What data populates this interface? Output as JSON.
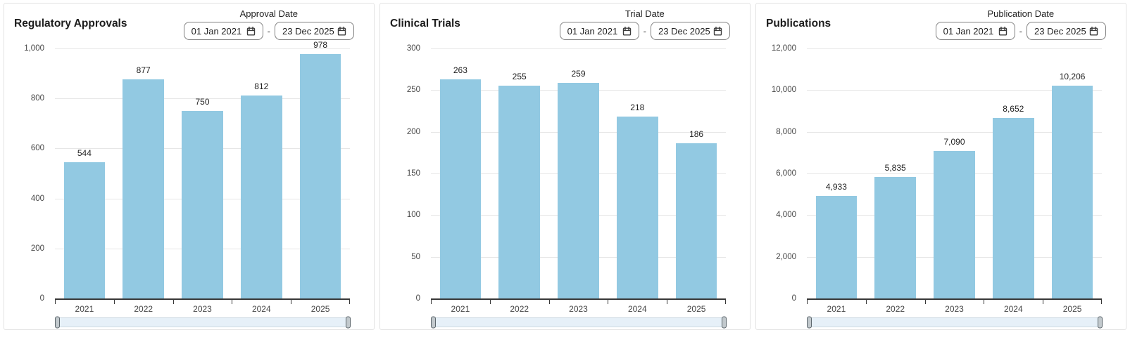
{
  "colors": {
    "bar": "#92c9e2",
    "panel_border": "#e2e2e2",
    "gridline": "#e6e6e6",
    "axis_line": "#383838",
    "slider_track": "#e6f0f8",
    "slider_handle": "#c2c9cd"
  },
  "panels": [
    {
      "title": "Regulatory Approvals",
      "filter": {
        "label": "Approval Date",
        "from": "01 Jan 2021",
        "separator": "-",
        "to": "23 Dec 2025"
      }
    },
    {
      "title": "Clinical Trials",
      "filter": {
        "label": "Trial Date",
        "from": "01 Jan 2021",
        "separator": "-",
        "to": "23 Dec 2025"
      }
    },
    {
      "title": "Publications",
      "filter": {
        "label": "Publication Date",
        "from": "01 Jan 2021",
        "separator": "-",
        "to": "23 Dec 2025"
      }
    }
  ],
  "chart_data": [
    {
      "type": "bar",
      "title": "Regulatory Approvals",
      "categories": [
        "2021",
        "2022",
        "2023",
        "2024",
        "2025"
      ],
      "values": [
        544,
        877,
        750,
        812,
        978
      ],
      "value_labels": [
        "544",
        "877",
        "750",
        "812",
        "978"
      ],
      "xlabel": "",
      "ylabel": "",
      "ylim": [
        0,
        1000
      ],
      "ytick_values": [
        0,
        200,
        400,
        600,
        800,
        1000
      ],
      "ytick_labels": [
        "0",
        "200",
        "400",
        "600",
        "800",
        "1,000"
      ],
      "grid": true,
      "legend": "none",
      "bar_color": "#92c9e2"
    },
    {
      "type": "bar",
      "title": "Clinical Trials",
      "categories": [
        "2021",
        "2022",
        "2023",
        "2024",
        "2025"
      ],
      "values": [
        263,
        255,
        259,
        218,
        186
      ],
      "value_labels": [
        "263",
        "255",
        "259",
        "218",
        "186"
      ],
      "xlabel": "",
      "ylabel": "",
      "ylim": [
        0,
        300
      ],
      "ytick_values": [
        0,
        50,
        100,
        150,
        200,
        250,
        300
      ],
      "ytick_labels": [
        "0",
        "50",
        "100",
        "150",
        "200",
        "250",
        "300"
      ],
      "grid": true,
      "legend": "none",
      "bar_color": "#92c9e2"
    },
    {
      "type": "bar",
      "title": "Publications",
      "categories": [
        "2021",
        "2022",
        "2023",
        "2024",
        "2025"
      ],
      "values": [
        4933,
        5835,
        7090,
        8652,
        10206
      ],
      "value_labels": [
        "4,933",
        "5,835",
        "7,090",
        "8,652",
        "10,206"
      ],
      "xlabel": "",
      "ylabel": "",
      "ylim": [
        0,
        12000
      ],
      "ytick_values": [
        0,
        2000,
        4000,
        6000,
        8000,
        10000,
        12000
      ],
      "ytick_labels": [
        "0",
        "2,000",
        "4,000",
        "6,000",
        "8,000",
        "10,000",
        "12,000"
      ],
      "grid": true,
      "legend": "none",
      "bar_color": "#92c9e2"
    }
  ]
}
